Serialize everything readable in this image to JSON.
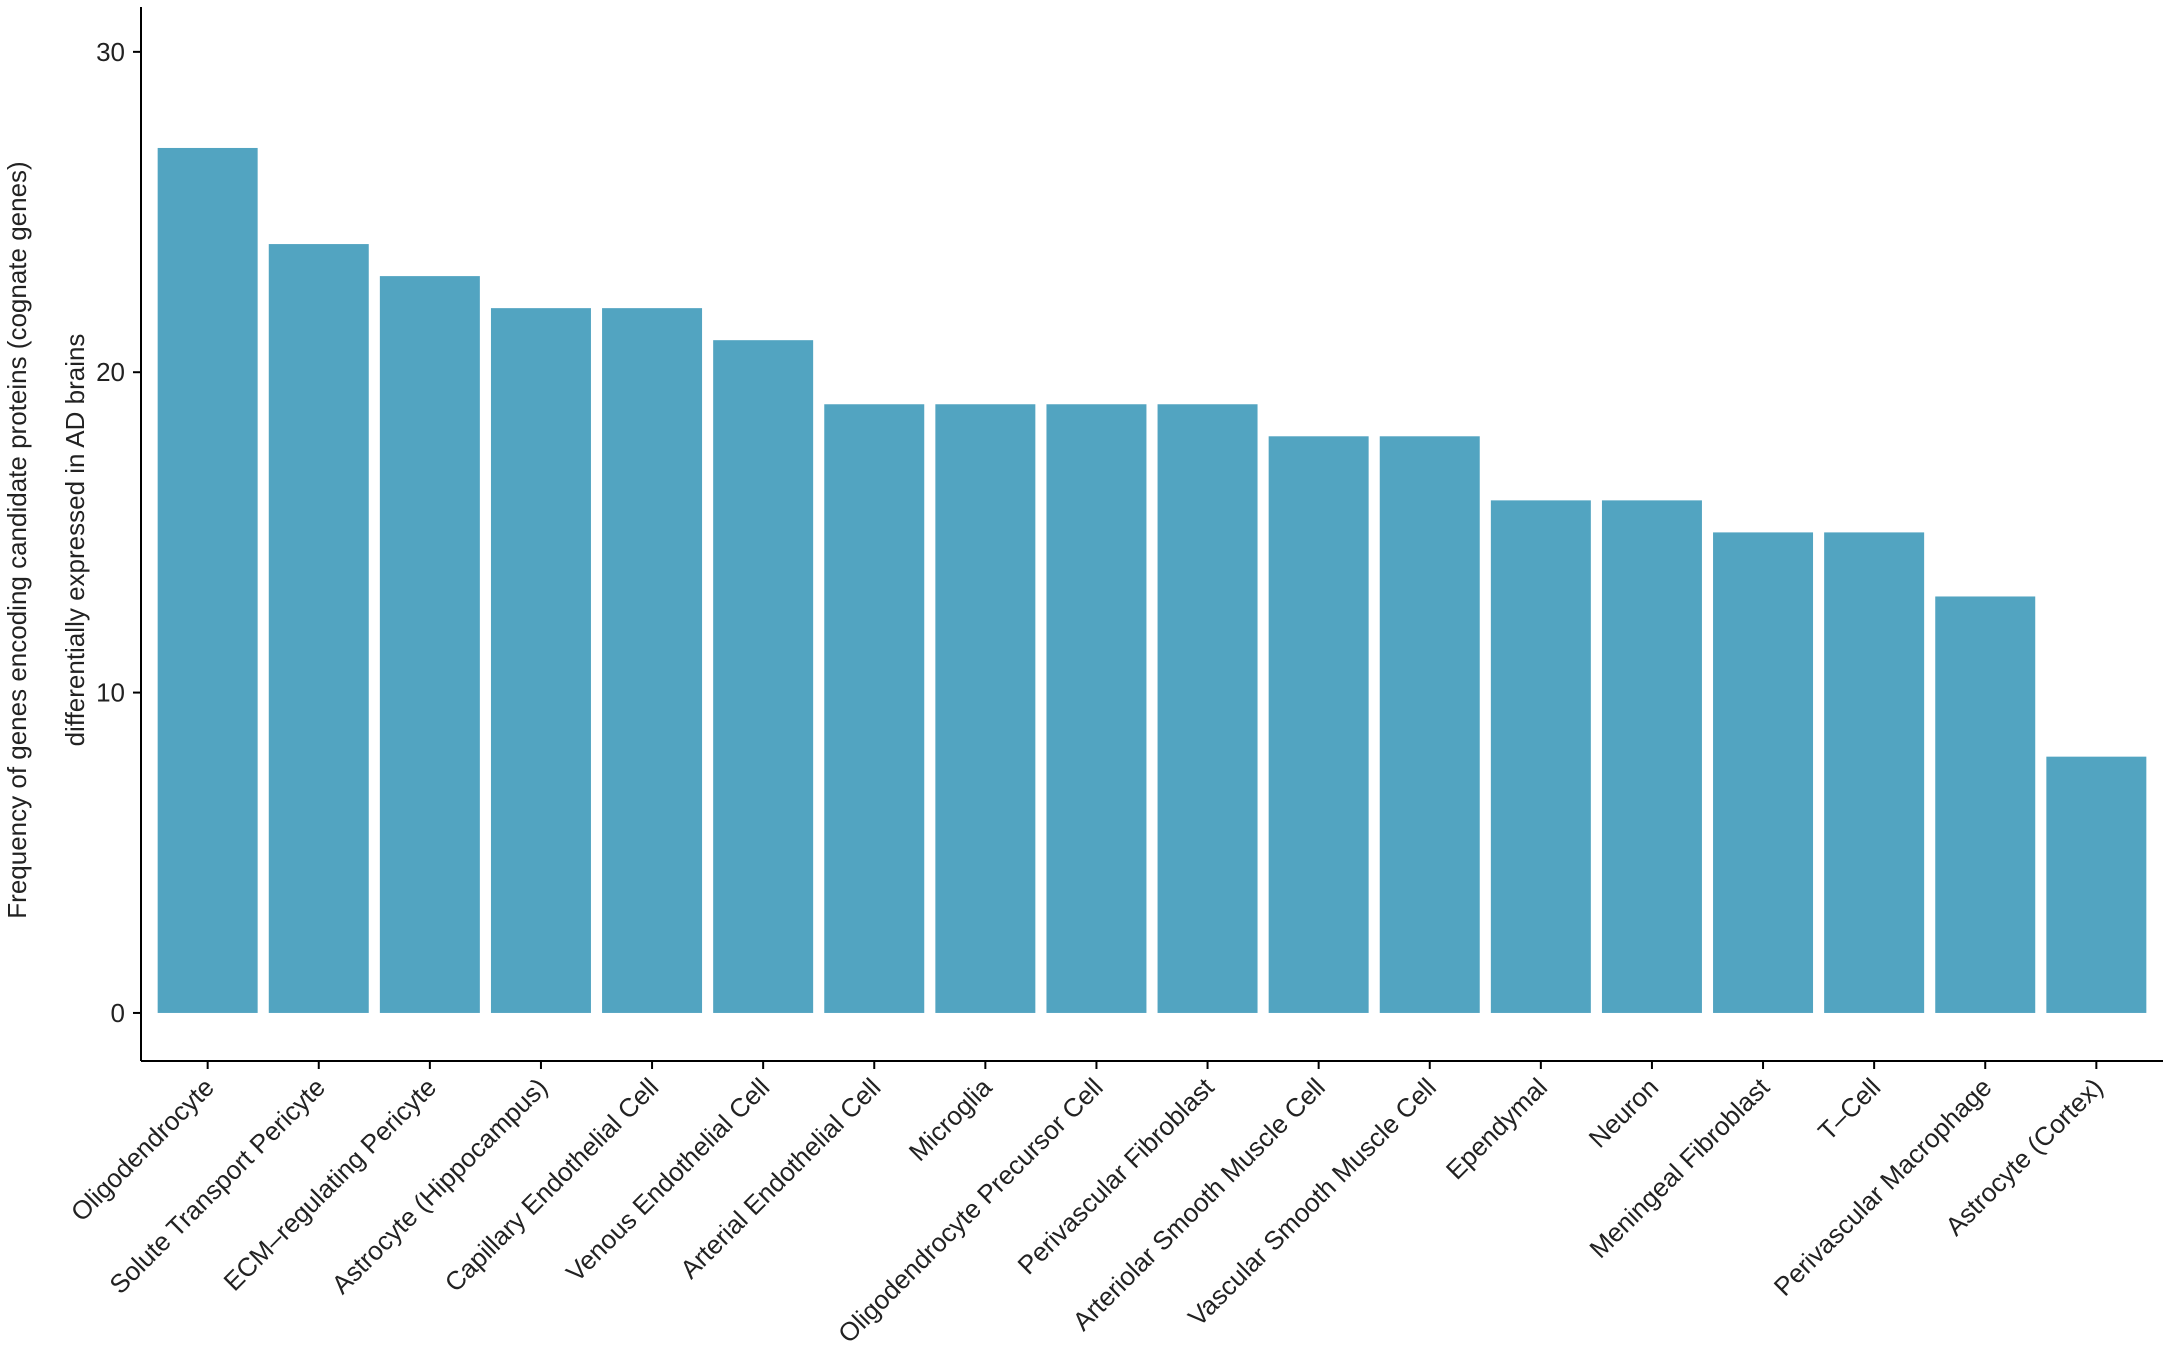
{
  "chart_data": {
    "type": "bar",
    "y_label": [
      "Frequency of genes encoding candidate proteins (cognate genes)",
      "differentially expressed in AD brains"
    ],
    "categories": [
      "Oligodendrocyte",
      "Solute Transport Pericyte",
      "ECM–regulating Pericyte",
      "Astrocyte (Hippocampus)",
      "Capillary Endothelial Cell",
      "Venous Endothelial Cell",
      "Arterial Endothelial Cell",
      "Microglia",
      "Oligodendrocyte Precursor Cell",
      "Perivascular Fibroblast",
      "Arteriolar Smooth Muscle Cell",
      "Vascular Smooth Muscle Cell",
      "Ependymal",
      "Neuron",
      "Meningeal Fibroblast",
      "T–Cell",
      "Perivascular Macrophage",
      "Astrocyte (Cortex)"
    ],
    "values": [
      27,
      24,
      23,
      22,
      22,
      21,
      19,
      19,
      19,
      19,
      18,
      18,
      16,
      16,
      15,
      15,
      13,
      8
    ],
    "color": "#52a4c1",
    "ylim": [
      -1.5,
      31.4
    ],
    "yticks": [
      0,
      10,
      20,
      30
    ],
    "grid": false
  }
}
